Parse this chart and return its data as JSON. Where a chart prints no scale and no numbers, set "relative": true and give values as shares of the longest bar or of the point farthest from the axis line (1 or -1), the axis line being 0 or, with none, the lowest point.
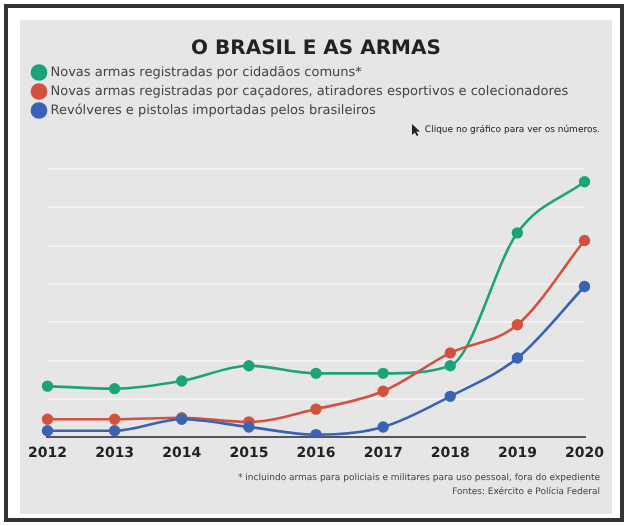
{
  "chart_data": {
    "type": "line",
    "title": "O BRASIL E AS ARMAS",
    "relative": true,
    "categories": [
      "2012",
      "2013",
      "2014",
      "2015",
      "2016",
      "2017",
      "2018",
      "2019",
      "2020"
    ],
    "series": [
      {
        "name": "Novas armas registradas por cidadãos comuns*",
        "color": "#1ba37a",
        "values": [
          0.2,
          0.19,
          0.22,
          0.28,
          0.25,
          0.25,
          0.28,
          0.8,
          1
        ]
      },
      {
        "name": "Novas armas registradas por caçadores, atiradores esportivos e colecionadores",
        "color": "#d4513f",
        "values": [
          0.07,
          0.07,
          0.076,
          0.06,
          0.11,
          0.18,
          0.33,
          0.44,
          0.77
        ]
      },
      {
        "name": "Revólveres e pistolas importadas pelos brasileiros",
        "color": "#3a62b5",
        "values": [
          0.025,
          0.025,
          0.07,
          0.04,
          0.01,
          0.04,
          0.16,
          0.31,
          0.59
        ]
      }
    ],
    "legend": "top left",
    "marker": "circle",
    "grid": "y",
    "annotations": [
      "Clique no gráfico para ver os números.",
      "* incluindo armas para policiais e militares para uso pessoal, fora do expediente",
      "Fontes: Exército e Polícia Federal"
    ]
  }
}
